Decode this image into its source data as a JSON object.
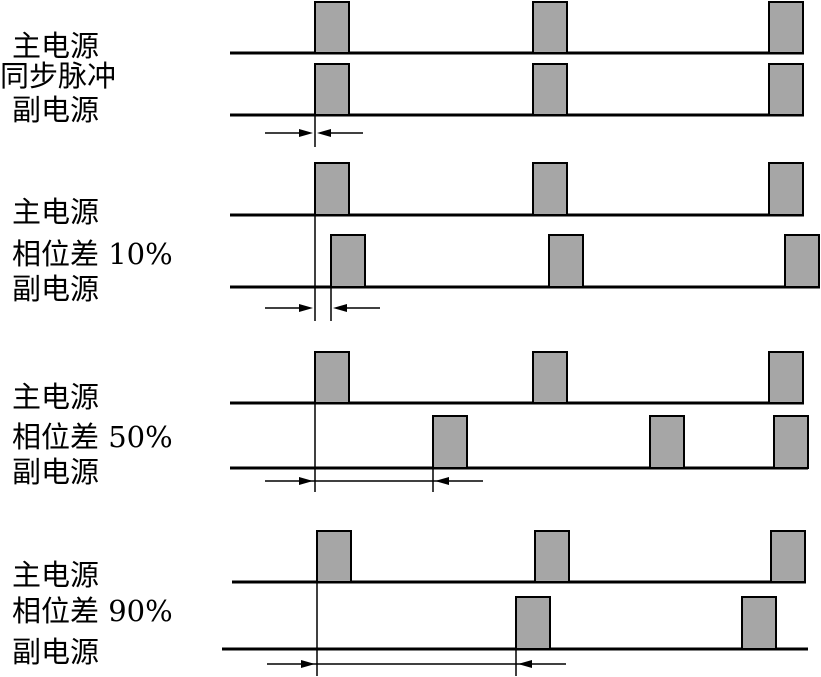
{
  "groups": [
    {
      "top_label": "主电源",
      "mid_label": "同步脉冲",
      "bottom_label": "副电源",
      "phase_fraction": 0.0
    },
    {
      "top_label": "主电源",
      "mid_label": "相位差 10%",
      "bottom_label": "副电源",
      "phase_fraction": 0.1
    },
    {
      "top_label": "主电源",
      "mid_label": "相位差 50%",
      "bottom_label": "副电源",
      "phase_fraction": 0.5
    },
    {
      "top_label": "主电源",
      "mid_label": "相位差 90%",
      "bottom_label": "副电源",
      "phase_fraction": 0.9
    }
  ],
  "colors": {
    "pulse_fill": "#a6a6a6",
    "line": "#000000"
  }
}
